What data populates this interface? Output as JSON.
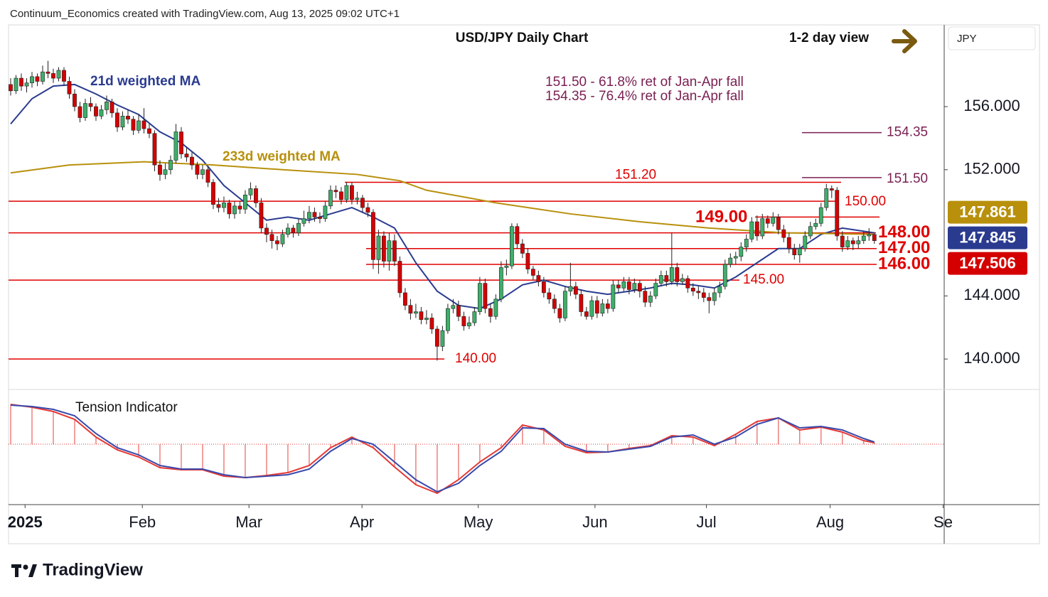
{
  "header": "Continuum_Economics created with TradingView.com, Aug 13, 2025 09:02 UTC+1",
  "brand": "TradingView",
  "currency": "JPY",
  "chart_data": {
    "type": "candlestick",
    "title": "USD/JPY Daily Chart",
    "subtitle": "1-2 day view",
    "annotations": [
      "151.50 - 61.8% ret of Jan-Apr fall",
      "154.35 - 76.4% ret of Jan-Apr fall"
    ],
    "up_color": "#3fae6a",
    "down_color": "#d40000",
    "wick_color": "#222222",
    "candles": [
      [
        157.4,
        157.8,
        156.7,
        157.0
      ],
      [
        157.0,
        158.0,
        156.8,
        157.8
      ],
      [
        157.8,
        158.1,
        157.0,
        157.3
      ],
      [
        157.3,
        157.8,
        156.9,
        157.5
      ],
      [
        157.5,
        158.2,
        157.2,
        157.9
      ],
      [
        157.9,
        158.1,
        157.3,
        157.6
      ],
      [
        157.6,
        158.6,
        157.4,
        158.2
      ],
      [
        158.2,
        158.9,
        157.8,
        158.1
      ],
      [
        158.1,
        158.4,
        157.5,
        157.8
      ],
      [
        157.8,
        158.5,
        157.6,
        158.3
      ],
      [
        158.3,
        158.5,
        157.3,
        157.6
      ],
      [
        157.6,
        157.9,
        156.5,
        156.8
      ],
      [
        156.8,
        157.1,
        155.7,
        156.0
      ],
      [
        156.0,
        156.3,
        155.0,
        155.3
      ],
      [
        155.3,
        156.5,
        155.1,
        156.2
      ],
      [
        156.2,
        156.6,
        155.7,
        156.0
      ],
      [
        156.0,
        156.2,
        155.1,
        155.4
      ],
      [
        155.4,
        156.1,
        155.2,
        155.8
      ],
      [
        155.8,
        156.7,
        155.5,
        156.3
      ],
      [
        156.3,
        156.5,
        155.3,
        155.6
      ],
      [
        155.6,
        155.9,
        154.4,
        154.7
      ],
      [
        154.7,
        155.7,
        154.5,
        155.4
      ],
      [
        155.4,
        155.8,
        154.9,
        155.2
      ],
      [
        155.2,
        155.4,
        154.2,
        154.5
      ],
      [
        154.5,
        155.5,
        154.3,
        155.1
      ],
      [
        155.1,
        155.9,
        154.3,
        154.6
      ],
      [
        154.6,
        154.9,
        154.0,
        154.3
      ],
      [
        154.3,
        154.5,
        151.9,
        152.3
      ],
      [
        152.3,
        152.6,
        151.3,
        151.7
      ],
      [
        151.7,
        152.4,
        151.4,
        152.0
      ],
      [
        152.0,
        152.9,
        151.7,
        152.6
      ],
      [
        152.6,
        154.9,
        152.4,
        154.4
      ],
      [
        154.4,
        154.7,
        152.7,
        153.0
      ],
      [
        153.0,
        153.4,
        152.5,
        152.8
      ],
      [
        152.8,
        153.1,
        152.0,
        152.3
      ],
      [
        152.3,
        152.5,
        151.4,
        151.7
      ],
      [
        151.7,
        152.3,
        151.4,
        152.0
      ],
      [
        152.0,
        152.2,
        150.9,
        151.2
      ],
      [
        151.2,
        151.4,
        149.5,
        149.8
      ],
      [
        149.8,
        150.2,
        149.3,
        149.6
      ],
      [
        149.6,
        150.3,
        149.3,
        149.9
      ],
      [
        149.9,
        150.1,
        148.9,
        149.2
      ],
      [
        149.2,
        150.0,
        148.9,
        149.7
      ],
      [
        149.7,
        150.0,
        149.2,
        149.5
      ],
      [
        149.5,
        150.7,
        149.2,
        150.4
      ],
      [
        150.4,
        151.2,
        150.1,
        150.8
      ],
      [
        150.8,
        151.0,
        149.6,
        149.9
      ],
      [
        149.9,
        150.2,
        148.0,
        148.3
      ],
      [
        148.3,
        148.6,
        147.4,
        147.9
      ],
      [
        147.9,
        148.2,
        147.0,
        147.5
      ],
      [
        147.5,
        147.8,
        146.9,
        147.3
      ],
      [
        147.3,
        148.2,
        147.1,
        147.9
      ],
      [
        147.9,
        148.6,
        147.7,
        148.3
      ],
      [
        148.3,
        148.5,
        147.7,
        148.0
      ],
      [
        148.0,
        148.9,
        147.8,
        148.6
      ],
      [
        148.6,
        149.4,
        148.4,
        148.9
      ],
      [
        148.9,
        149.7,
        148.6,
        149.3
      ],
      [
        149.3,
        149.6,
        148.7,
        149.0
      ],
      [
        149.0,
        149.3,
        148.6,
        148.9
      ],
      [
        148.9,
        150.0,
        148.7,
        149.7
      ],
      [
        149.7,
        151.0,
        149.5,
        150.7
      ],
      [
        150.7,
        151.0,
        150.2,
        150.6
      ],
      [
        150.6,
        150.9,
        149.8,
        150.1
      ],
      [
        150.1,
        151.2,
        149.9,
        151.0
      ],
      [
        151.0,
        151.2,
        149.8,
        150.1
      ],
      [
        150.1,
        150.6,
        149.8,
        150.2
      ],
      [
        150.2,
        150.4,
        149.3,
        149.6
      ],
      [
        149.6,
        149.9,
        149.0,
        149.3
      ],
      [
        149.3,
        149.5,
        145.7,
        146.3
      ],
      [
        146.3,
        148.2,
        145.4,
        147.8
      ],
      [
        147.8,
        148.1,
        145.8,
        146.2
      ],
      [
        146.2,
        148.0,
        145.6,
        147.5
      ],
      [
        147.5,
        147.9,
        145.9,
        146.2
      ],
      [
        146.2,
        146.5,
        143.9,
        144.2
      ],
      [
        144.2,
        144.5,
        143.1,
        143.4
      ],
      [
        143.4,
        143.8,
        142.5,
        142.9
      ],
      [
        142.9,
        143.5,
        142.6,
        143.0
      ],
      [
        143.0,
        143.3,
        142.2,
        142.5
      ],
      [
        142.5,
        143.1,
        142.2,
        142.6
      ],
      [
        142.6,
        142.9,
        141.6,
        141.9
      ],
      [
        141.9,
        142.1,
        139.9,
        140.8
      ],
      [
        140.8,
        142.1,
        140.5,
        141.8
      ],
      [
        141.8,
        143.5,
        141.6,
        143.2
      ],
      [
        143.2,
        143.8,
        142.9,
        143.4
      ],
      [
        143.4,
        143.7,
        142.4,
        142.7
      ],
      [
        142.7,
        143.0,
        141.8,
        142.1
      ],
      [
        142.1,
        142.7,
        141.9,
        142.3
      ],
      [
        142.3,
        143.3,
        142.1,
        143.0
      ],
      [
        143.0,
        145.2,
        142.8,
        144.8
      ],
      [
        144.8,
        145.1,
        142.9,
        143.2
      ],
      [
        143.2,
        143.5,
        142.3,
        142.7
      ],
      [
        142.7,
        144.1,
        142.5,
        143.8
      ],
      [
        143.8,
        146.2,
        143.6,
        145.8
      ],
      [
        145.8,
        146.3,
        145.3,
        145.9
      ],
      [
        145.9,
        148.6,
        145.7,
        148.4
      ],
      [
        148.4,
        148.6,
        147.0,
        147.3
      ],
      [
        147.3,
        147.6,
        146.4,
        146.7
      ],
      [
        146.7,
        147.0,
        145.4,
        145.7
      ],
      [
        145.7,
        145.9,
        145.0,
        145.3
      ],
      [
        145.3,
        145.6,
        144.6,
        144.9
      ],
      [
        144.9,
        145.2,
        143.9,
        144.2
      ],
      [
        144.2,
        144.5,
        143.5,
        143.8
      ],
      [
        143.8,
        144.1,
        142.9,
        143.2
      ],
      [
        143.2,
        143.5,
        142.3,
        142.6
      ],
      [
        142.6,
        144.6,
        142.4,
        144.3
      ],
      [
        144.3,
        146.1,
        144.0,
        144.6
      ],
      [
        144.6,
        144.9,
        143.8,
        144.1
      ],
      [
        144.1,
        144.4,
        142.7,
        143.0
      ],
      [
        143.0,
        143.3,
        142.5,
        142.7
      ],
      [
        142.7,
        144.0,
        142.5,
        143.7
      ],
      [
        143.7,
        144.0,
        142.6,
        142.9
      ],
      [
        142.9,
        143.8,
        142.7,
        143.5
      ],
      [
        143.5,
        143.8,
        142.9,
        143.2
      ],
      [
        143.2,
        145.0,
        143.0,
        144.7
      ],
      [
        144.7,
        145.0,
        144.2,
        144.5
      ],
      [
        144.5,
        145.2,
        144.3,
        144.9
      ],
      [
        144.9,
        145.2,
        144.1,
        144.4
      ],
      [
        144.4,
        145.1,
        144.2,
        144.8
      ],
      [
        144.8,
        145.0,
        143.9,
        144.3
      ],
      [
        144.3,
        144.6,
        143.3,
        143.6
      ],
      [
        143.6,
        144.3,
        143.3,
        144.0
      ],
      [
        144.0,
        145.1,
        143.8,
        144.8
      ],
      [
        144.8,
        145.6,
        144.6,
        145.3
      ],
      [
        145.3,
        145.6,
        144.6,
        144.9
      ],
      [
        144.9,
        148.0,
        144.7,
        145.8
      ],
      [
        145.8,
        146.1,
        144.6,
        144.9
      ],
      [
        144.9,
        145.4,
        144.7,
        145.1
      ],
      [
        145.1,
        145.3,
        144.2,
        144.5
      ],
      [
        144.5,
        144.8,
        144.0,
        144.3
      ],
      [
        144.3,
        144.6,
        143.8,
        144.2
      ],
      [
        144.2,
        144.5,
        143.6,
        143.9
      ],
      [
        143.9,
        144.2,
        142.9,
        143.7
      ],
      [
        143.7,
        144.5,
        143.4,
        144.2
      ],
      [
        144.2,
        144.9,
        143.9,
        144.6
      ],
      [
        144.6,
        146.3,
        144.4,
        146.0
      ],
      [
        146.0,
        146.7,
        145.8,
        146.4
      ],
      [
        146.4,
        146.8,
        146.0,
        146.5
      ],
      [
        146.5,
        147.4,
        146.2,
        147.1
      ],
      [
        147.1,
        147.9,
        146.8,
        147.6
      ],
      [
        147.6,
        149.0,
        147.4,
        148.7
      ],
      [
        148.7,
        149.1,
        147.5,
        147.8
      ],
      [
        147.8,
        149.2,
        147.6,
        148.9
      ],
      [
        148.9,
        149.1,
        148.3,
        148.6
      ],
      [
        148.6,
        149.3,
        148.4,
        149.0
      ],
      [
        149.0,
        149.2,
        147.9,
        148.2
      ],
      [
        148.2,
        148.5,
        147.4,
        147.7
      ],
      [
        147.7,
        148.0,
        146.7,
        147.0
      ],
      [
        147.0,
        147.3,
        146.3,
        146.6
      ],
      [
        146.6,
        147.3,
        146.1,
        147.0
      ],
      [
        147.0,
        148.1,
        146.8,
        147.8
      ],
      [
        147.8,
        148.7,
        147.6,
        148.4
      ],
      [
        148.4,
        148.9,
        148.2,
        148.6
      ],
      [
        148.6,
        149.9,
        148.4,
        149.6
      ],
      [
        149.6,
        151.1,
        149.4,
        150.8
      ],
      [
        150.8,
        151.0,
        150.2,
        150.7
      ],
      [
        150.7,
        150.9,
        147.5,
        147.8
      ],
      [
        147.8,
        148.1,
        146.8,
        147.1
      ],
      [
        147.1,
        147.8,
        146.9,
        147.5
      ],
      [
        147.5,
        147.7,
        146.9,
        147.3
      ],
      [
        147.3,
        147.8,
        147.0,
        147.5
      ],
      [
        147.5,
        148.1,
        147.3,
        147.8
      ],
      [
        147.8,
        148.3,
        147.5,
        147.9
      ],
      [
        147.9,
        148.0,
        147.3,
        147.5
      ]
    ],
    "series": [
      {
        "name": "21d weighted MA",
        "color": "#2a3b8f",
        "x": [
          0,
          4,
          8,
          12,
          16,
          20,
          24,
          28,
          32,
          36,
          40,
          44,
          48,
          52,
          56,
          60,
          64,
          68,
          72,
          76,
          80,
          84,
          88,
          92,
          96,
          100,
          104,
          108,
          112,
          116,
          120,
          124,
          128,
          132,
          136,
          140,
          144,
          148,
          152,
          156,
          160,
          162
        ],
        "values": [
          154.9,
          156.5,
          157.3,
          157.4,
          156.8,
          156.1,
          155.5,
          154.4,
          153.7,
          152.6,
          151.0,
          149.9,
          148.8,
          149.0,
          148.8,
          149.2,
          149.6,
          149.0,
          148.3,
          146.1,
          144.3,
          143.4,
          143.2,
          143.8,
          144.7,
          145.0,
          144.6,
          144.3,
          144.1,
          144.3,
          144.5,
          144.8,
          144.7,
          144.5,
          145.2,
          146.1,
          147.0,
          147.0,
          147.9,
          148.3,
          148.1,
          148.0
        ]
      },
      {
        "name": "233d weighted MA",
        "color": "#b8900c",
        "x": [
          0,
          11,
          25,
          38,
          51,
          65,
          73,
          78,
          91,
          105,
          118,
          131,
          145,
          162
        ],
        "values": [
          151.8,
          152.3,
          152.5,
          152.3,
          152.0,
          151.7,
          151.3,
          150.7,
          149.9,
          149.2,
          148.7,
          148.3,
          148.0,
          147.9
        ]
      }
    ],
    "levels": [
      {
        "value": 154.35,
        "label": "154.35",
        "color": "#7a1f52"
      },
      {
        "value": 151.5,
        "label": "151.50",
        "color": "#7a1f52"
      },
      {
        "value": 151.2,
        "label": "151.20",
        "color": "#e00000"
      },
      {
        "value": 150,
        "label": "150.00",
        "color": "#e00000"
      },
      {
        "value": 149,
        "label": "149.00",
        "color": "#e00000"
      },
      {
        "value": 148,
        "label": "148.00",
        "color": "#e00000"
      },
      {
        "value": 147,
        "label": "147.00",
        "color": "#e00000"
      },
      {
        "value": 146,
        "label": "146.00",
        "color": "#e00000"
      },
      {
        "value": 145,
        "label": "145.00",
        "color": "#e00000"
      },
      {
        "value": 140,
        "label": "140.00",
        "color": "#e00000"
      }
    ],
    "price_labels": [
      {
        "value": 147.861,
        "color": "#b8900c"
      },
      {
        "value": 147.845,
        "color": "#2a3b8f"
      },
      {
        "value": 147.506,
        "color": "#d40000"
      }
    ],
    "ylim": [
      138.07,
      161.18
    ],
    "yticks": [
      {
        "value": 156,
        "label": "156.000"
      },
      {
        "value": 152,
        "label": "152.000"
      },
      {
        "value": 144,
        "label": "144.000"
      },
      {
        "value": 140,
        "label": "140.000"
      }
    ],
    "xlim": [
      -0.4,
      175.1
    ],
    "xticks": [
      {
        "value": 2.7,
        "label": "2025"
      },
      {
        "value": 24.7,
        "label": "Feb"
      },
      {
        "value": 44.7,
        "label": "Mar"
      },
      {
        "value": 65.9,
        "label": "Apr"
      },
      {
        "value": 87.7,
        "label": "May"
      },
      {
        "value": 109.6,
        "label": "Jun"
      },
      {
        "value": 130.5,
        "label": "Jul"
      },
      {
        "value": 153.7,
        "label": "Aug"
      },
      {
        "value": 174.9,
        "label": "Se"
      }
    ],
    "tension": {
      "title": "Tension Indicator",
      "ylim": [
        -80,
        75
      ],
      "color": "#e53935",
      "signal_color": "#3949ab",
      "x": [
        0,
        4,
        8,
        12,
        16,
        20,
        24,
        28,
        32,
        36,
        40,
        44,
        48,
        52,
        56,
        60,
        64,
        68,
        72,
        76,
        80,
        84,
        88,
        92,
        96,
        100,
        104,
        108,
        112,
        116,
        120,
        124,
        128,
        132,
        136,
        140,
        144,
        148,
        152,
        156,
        160,
        162
      ],
      "values": [
        56,
        52,
        46,
        35,
        10,
        -8,
        -18,
        -33,
        -36,
        -36,
        -45,
        -47,
        -44,
        -40,
        -30,
        -5,
        10,
        -5,
        -32,
        -57,
        -69,
        -50,
        -25,
        -5,
        27,
        20,
        -3,
        -12,
        -11,
        -6,
        -2,
        12,
        10,
        -2,
        14,
        32,
        37,
        20,
        24,
        17,
        5,
        2
      ],
      "signal": [
        55,
        53,
        49,
        40,
        15,
        -5,
        -15,
        -30,
        -35,
        -35,
        -43,
        -47,
        -45,
        -43,
        -35,
        -10,
        8,
        0,
        -25,
        -50,
        -67,
        -55,
        -30,
        -10,
        23,
        22,
        0,
        -10,
        -11,
        -7,
        -3,
        10,
        13,
        0,
        10,
        28,
        37,
        23,
        25,
        20,
        8,
        3
      ]
    }
  }
}
